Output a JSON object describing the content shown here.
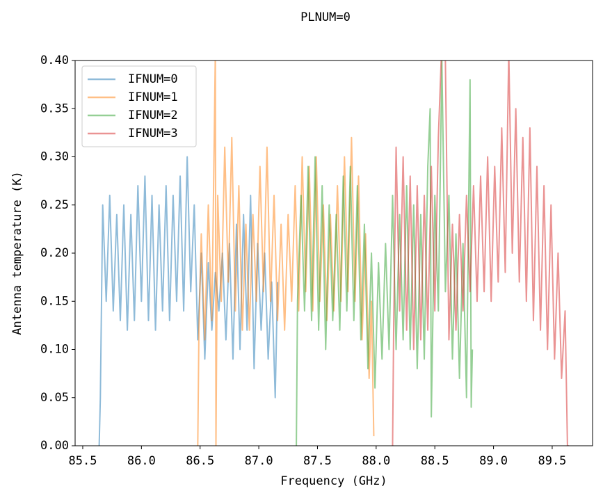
{
  "chart_data": {
    "type": "line",
    "title": "PLNUM=0",
    "xlabel": "Frequency (GHz)",
    "ylabel": "Antenna temperature (K)",
    "xlim": [
      85.435,
      89.844
    ],
    "ylim": [
      0,
      0.4
    ],
    "xticks": [
      85.5,
      {
        "value": 86,
        "label": "86.0"
      },
      86.5,
      {
        "value": 87,
        "label": "87.0"
      },
      87.5,
      {
        "value": 88,
        "label": "88.0"
      },
      88.5,
      {
        "value": 89,
        "label": "89.0"
      },
      89.5
    ],
    "yticks": [
      {
        "value": 0,
        "label": "0.00"
      },
      {
        "value": 0.05,
        "label": "0.05"
      },
      {
        "value": 0.1,
        "label": "0.10"
      },
      {
        "value": 0.15,
        "label": "0.15"
      },
      {
        "value": 0.2,
        "label": "0.20"
      },
      {
        "value": 0.25,
        "label": "0.25"
      },
      {
        "value": 0.3,
        "label": "0.30"
      },
      {
        "value": 0.35,
        "label": "0.35"
      },
      {
        "value": 0.4,
        "label": "0.40"
      }
    ],
    "grid": false,
    "legend": "upper left",
    "alpha": 0.5,
    "series": [
      {
        "name": "IFNUM=0",
        "color": "#1f77b4",
        "x": [
          85.64,
          85.65,
          85.67,
          85.7,
          85.73,
          85.76,
          85.79,
          85.82,
          85.85,
          85.88,
          85.91,
          85.94,
          85.97,
          86.0,
          86.03,
          86.06,
          86.09,
          86.12,
          86.15,
          86.18,
          86.21,
          86.24,
          86.27,
          86.3,
          86.33,
          86.36,
          86.39,
          86.42,
          86.45,
          86.48,
          86.51,
          86.54,
          86.57,
          86.6,
          86.63,
          86.66,
          86.69,
          86.72,
          86.75,
          86.78,
          86.81,
          86.84,
          86.87,
          86.9,
          86.93,
          86.96,
          86.99,
          87.02,
          87.05,
          87.08,
          87.11,
          87.14,
          87.16
        ],
        "values": [
          0,
          0.05,
          0.25,
          0.15,
          0.26,
          0.14,
          0.24,
          0.13,
          0.25,
          0.12,
          0.24,
          0.13,
          0.27,
          0.15,
          0.28,
          0.13,
          0.26,
          0.12,
          0.25,
          0.14,
          0.27,
          0.13,
          0.26,
          0.15,
          0.28,
          0.14,
          0.3,
          0.16,
          0.25,
          0.11,
          0.2,
          0.09,
          0.19,
          0.12,
          0.18,
          0.14,
          0.2,
          0.11,
          0.21,
          0.09,
          0.23,
          0.1,
          0.24,
          0.12,
          0.26,
          0.08,
          0.21,
          0.12,
          0.2,
          0.09,
          0.17,
          0.05,
          0.17
        ]
      },
      {
        "name": "IFNUM=1",
        "color": "#ff7f0e",
        "x": [
          86.48,
          86.49,
          86.51,
          86.54,
          86.57,
          86.6,
          86.63,
          86.635,
          86.65,
          86.68,
          86.71,
          86.74,
          86.77,
          86.8,
          86.83,
          86.86,
          86.89,
          86.92,
          86.95,
          86.98,
          87.01,
          87.04,
          87.07,
          87.1,
          87.13,
          87.16,
          87.19,
          87.22,
          87.25,
          87.28,
          87.31,
          87.34,
          87.37,
          87.4,
          87.43,
          87.46,
          87.49,
          87.52,
          87.55,
          87.58,
          87.61,
          87.64,
          87.67,
          87.7,
          87.73,
          87.76,
          87.79,
          87.82,
          87.85,
          87.88,
          87.91,
          87.94,
          87.96,
          87.98
        ],
        "values": [
          0,
          0.12,
          0.22,
          0.11,
          0.25,
          0.13,
          0.41,
          0,
          0.26,
          0.15,
          0.31,
          0.17,
          0.32,
          0.14,
          0.27,
          0.12,
          0.23,
          0.12,
          0.24,
          0.15,
          0.29,
          0.16,
          0.31,
          0.15,
          0.26,
          0.13,
          0.23,
          0.12,
          0.24,
          0.15,
          0.27,
          0.14,
          0.3,
          0.16,
          0.29,
          0.14,
          0.3,
          0.15,
          0.25,
          0.13,
          0.24,
          0.14,
          0.27,
          0.15,
          0.3,
          0.16,
          0.32,
          0.15,
          0.28,
          0.11,
          0.22,
          0.07,
          0.15,
          0.01
        ]
      },
      {
        "name": "IFNUM=2",
        "color": "#2ca02c",
        "x": [
          87.32,
          87.33,
          87.36,
          87.39,
          87.42,
          87.45,
          87.48,
          87.51,
          87.54,
          87.57,
          87.6,
          87.63,
          87.66,
          87.69,
          87.72,
          87.75,
          87.78,
          87.81,
          87.84,
          87.87,
          87.9,
          87.93,
          87.96,
          87.99,
          88.02,
          88.05,
          88.08,
          88.11,
          88.14,
          88.17,
          88.2,
          88.23,
          88.26,
          88.29,
          88.32,
          88.35,
          88.38,
          88.41,
          88.44,
          88.46,
          88.47,
          88.5,
          88.53,
          88.56,
          88.59,
          88.62,
          88.65,
          88.68,
          88.71,
          88.74,
          88.77,
          88.8,
          88.81,
          88.82
        ],
        "values": [
          0,
          0.15,
          0.26,
          0.14,
          0.29,
          0.13,
          0.3,
          0.12,
          0.27,
          0.1,
          0.25,
          0.13,
          0.24,
          0.12,
          0.28,
          0.14,
          0.29,
          0.13,
          0.27,
          0.11,
          0.23,
          0.08,
          0.2,
          0.06,
          0.19,
          0.09,
          0.21,
          0.1,
          0.26,
          0.1,
          0.24,
          0.11,
          0.27,
          0.1,
          0.25,
          0.08,
          0.24,
          0.09,
          0.29,
          0.35,
          0.03,
          0.26,
          0.14,
          0.4,
          0.16,
          0.26,
          0.09,
          0.22,
          0.07,
          0.21,
          0.05,
          0.38,
          0.04,
          0.1
        ]
      },
      {
        "name": "IFNUM=3",
        "color": "#d62728",
        "x": [
          88.14,
          88.15,
          88.17,
          88.2,
          88.23,
          88.26,
          88.29,
          88.32,
          88.35,
          88.38,
          88.41,
          88.44,
          88.47,
          88.5,
          88.53,
          88.56,
          88.59,
          88.62,
          88.65,
          88.68,
          88.71,
          88.74,
          88.77,
          88.8,
          88.83,
          88.86,
          88.89,
          88.92,
          88.95,
          88.98,
          89.01,
          89.04,
          89.07,
          89.1,
          89.13,
          89.16,
          89.19,
          89.22,
          89.25,
          89.28,
          89.31,
          89.34,
          89.37,
          89.4,
          89.43,
          89.46,
          89.49,
          89.52,
          89.55,
          89.58,
          89.61,
          89.63,
          89.64
        ],
        "values": [
          0,
          0.13,
          0.31,
          0.14,
          0.3,
          0.12,
          0.28,
          0.1,
          0.27,
          0.11,
          0.26,
          0.12,
          0.29,
          0.14,
          0.32,
          0.42,
          0.4,
          0.11,
          0.23,
          0.12,
          0.24,
          0.14,
          0.26,
          0.16,
          0.27,
          0.15,
          0.28,
          0.16,
          0.3,
          0.15,
          0.29,
          0.17,
          0.33,
          0.18,
          0.41,
          0.2,
          0.35,
          0.17,
          0.32,
          0.15,
          0.33,
          0.13,
          0.29,
          0.12,
          0.27,
          0.1,
          0.25,
          0.09,
          0.2,
          0.07,
          0.14,
          0,
          0
        ]
      }
    ]
  }
}
